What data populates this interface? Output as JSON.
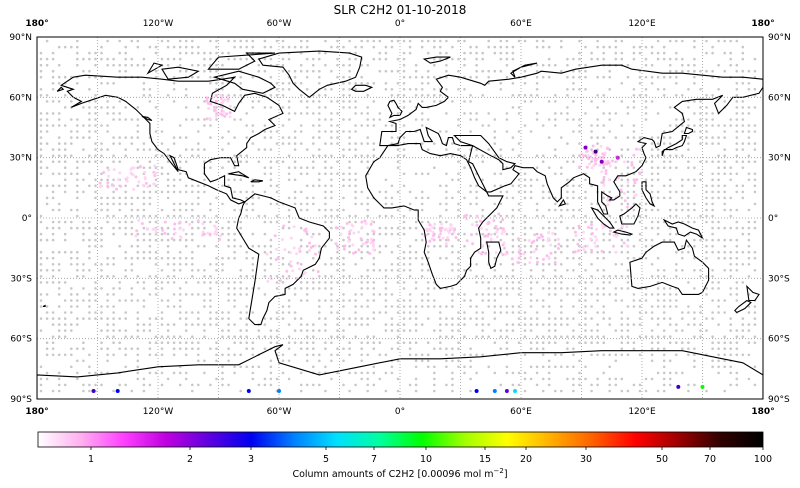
{
  "title": "SLR C2H2 01-10-2018",
  "lon_labels": [
    "180°",
    "120°W",
    "60°W",
    "0°",
    "60°E",
    "120°E",
    "180°"
  ],
  "lat_labels": [
    "90°N",
    "60°N",
    "30°N",
    "0°",
    "30°S",
    "60°S",
    "90°S"
  ],
  "colorbar": {
    "ticks": [
      "1",
      "2",
      "3",
      "5",
      "7",
      "10",
      "15",
      "20",
      "30",
      "50",
      "70",
      "100"
    ],
    "label_prefix": "Column amounts of C2H2 [0.00096 mol m",
    "label_exp": "−2",
    "label_suffix": "]",
    "colors": [
      "#ffffff",
      "#ffb0f0",
      "#ff40ff",
      "#c000e0",
      "#6000e0",
      "#0000f0",
      "#0080ff",
      "#00e0ff",
      "#00ffa0",
      "#00ff00",
      "#a0ff00",
      "#ffff00",
      "#ffb000",
      "#ff6000",
      "#ff0000",
      "#a00000",
      "#300000",
      "#000000"
    ]
  },
  "map": {
    "projection": "plate-carree",
    "lon_range": [
      -180,
      180
    ],
    "lat_range": [
      -90,
      90
    ],
    "gridline_interval_deg": 30,
    "no_data_dot_color": "#c8c8c8"
  },
  "observations": [
    {
      "lon": 38,
      "lat": -86,
      "value": 3,
      "color": "#0000f0"
    },
    {
      "lon": 47,
      "lat": -86,
      "value": 5,
      "color": "#0080ff"
    },
    {
      "lon": 53,
      "lat": -86,
      "value": 2,
      "color": "#6000e0"
    },
    {
      "lon": 57,
      "lat": -86,
      "value": 7,
      "color": "#00e0ff"
    },
    {
      "lon": 138,
      "lat": -84,
      "value": 2.5,
      "color": "#4000c0"
    },
    {
      "lon": 150,
      "lat": -84,
      "value": 10,
      "color": "#00ff00"
    },
    {
      "lon": -152,
      "lat": -86,
      "value": 2.5,
      "color": "#4000c0"
    },
    {
      "lon": -140,
      "lat": -86,
      "value": 3,
      "color": "#0000f0"
    },
    {
      "lon": -75,
      "lat": -86,
      "value": 3,
      "color": "#0000f0"
    },
    {
      "lon": -60,
      "lat": -86,
      "value": 5,
      "color": "#0080ff"
    },
    {
      "lon": 92,
      "lat": 35,
      "value": 2,
      "color": "#8000c0"
    },
    {
      "lon": 97,
      "lat": 33,
      "value": 2.5,
      "color": "#400080"
    },
    {
      "lon": 100,
      "lat": 28,
      "value": 2,
      "color": "#8000c0"
    },
    {
      "lon": 108,
      "lat": 30,
      "value": 1.5,
      "color": "#c030d0"
    }
  ]
}
